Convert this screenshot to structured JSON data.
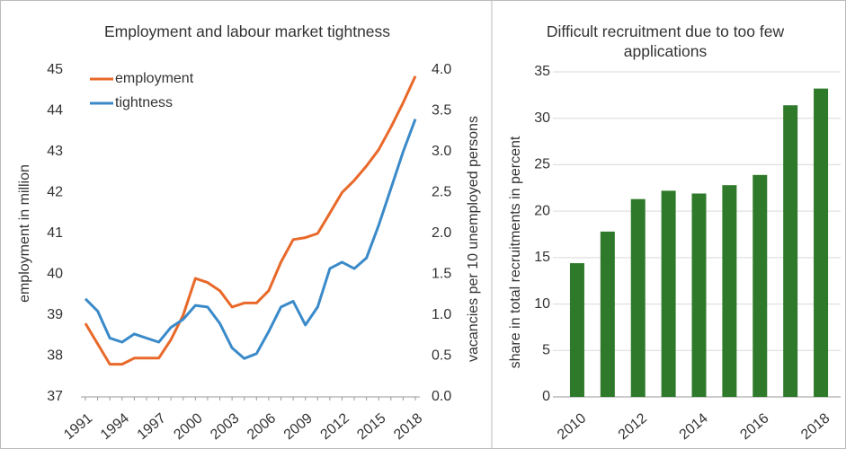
{
  "chart_data": [
    {
      "type": "line",
      "title": "Employment and labour market tightness",
      "x": [
        1991,
        1992,
        1993,
        1994,
        1995,
        1996,
        1997,
        1998,
        1999,
        2000,
        2001,
        2002,
        2003,
        2004,
        2005,
        2006,
        2007,
        2008,
        2009,
        2010,
        2011,
        2012,
        2013,
        2014,
        2015,
        2016,
        2017,
        2018
      ],
      "xlim": [
        1991,
        2018
      ],
      "xticks": [
        1991,
        1994,
        1997,
        2000,
        2003,
        2006,
        2009,
        2012,
        2015,
        2018
      ],
      "ylabel": "employment in million",
      "y2label": "vacancies per 10 unemployed persons",
      "ylim": [
        37,
        45
      ],
      "yticks": [
        37,
        38,
        39,
        40,
        41,
        42,
        43,
        44,
        45
      ],
      "y2lim": [
        0,
        4
      ],
      "y2ticks": [
        {
          "value": 0,
          "label": "0.0"
        },
        {
          "value": 0.5,
          "label": "0.5"
        },
        {
          "value": 1,
          "label": "1.0"
        },
        {
          "value": 1.5,
          "label": "1.5"
        },
        {
          "value": 2,
          "label": "2.0"
        },
        {
          "value": 2.5,
          "label": "2.5"
        },
        {
          "value": 3,
          "label": "3.0"
        },
        {
          "value": 3.5,
          "label": "3.5"
        },
        {
          "value": 4,
          "label": "4.0"
        }
      ],
      "legend": "upper left",
      "series": [
        {
          "name": "employment",
          "color": "#e8692a",
          "values": [
            38.8,
            38.3,
            37.8,
            37.8,
            37.95,
            37.95,
            37.95,
            38.4,
            39.0,
            39.9,
            39.8,
            39.6,
            39.2,
            39.3,
            39.3,
            39.6,
            40.3,
            40.85,
            40.9,
            41.0,
            41.5,
            42.0,
            42.3,
            42.65,
            43.05,
            43.6,
            44.2,
            44.85
          ]
        },
        {
          "name": "tightness",
          "color": "#3a8ac9",
          "axis": "y2",
          "values": [
            1.2,
            1.05,
            0.72,
            0.67,
            0.77,
            0.72,
            0.67,
            0.85,
            0.95,
            1.12,
            1.1,
            0.9,
            0.6,
            0.47,
            0.53,
            0.8,
            1.1,
            1.17,
            0.88,
            1.1,
            1.57,
            1.65,
            1.57,
            1.7,
            2.1,
            2.55,
            3.0,
            3.4
          ]
        }
      ]
    },
    {
      "type": "bar",
      "title": "Difficult recruitment due to too few applications",
      "ylabel": "share in total recruitments in percent",
      "categories": [
        "2010",
        null,
        "2012",
        null,
        "2014",
        null,
        "2016",
        null,
        "2018"
      ],
      "values": [
        14.4,
        17.8,
        21.3,
        22.2,
        21.9,
        22.8,
        23.9,
        31.4,
        33.2
      ],
      "color": "#2f7a2a",
      "ylim": [
        0,
        35
      ],
      "yticks": [
        0,
        5,
        10,
        15,
        20,
        25,
        30,
        35
      ],
      "grid": true
    }
  ]
}
